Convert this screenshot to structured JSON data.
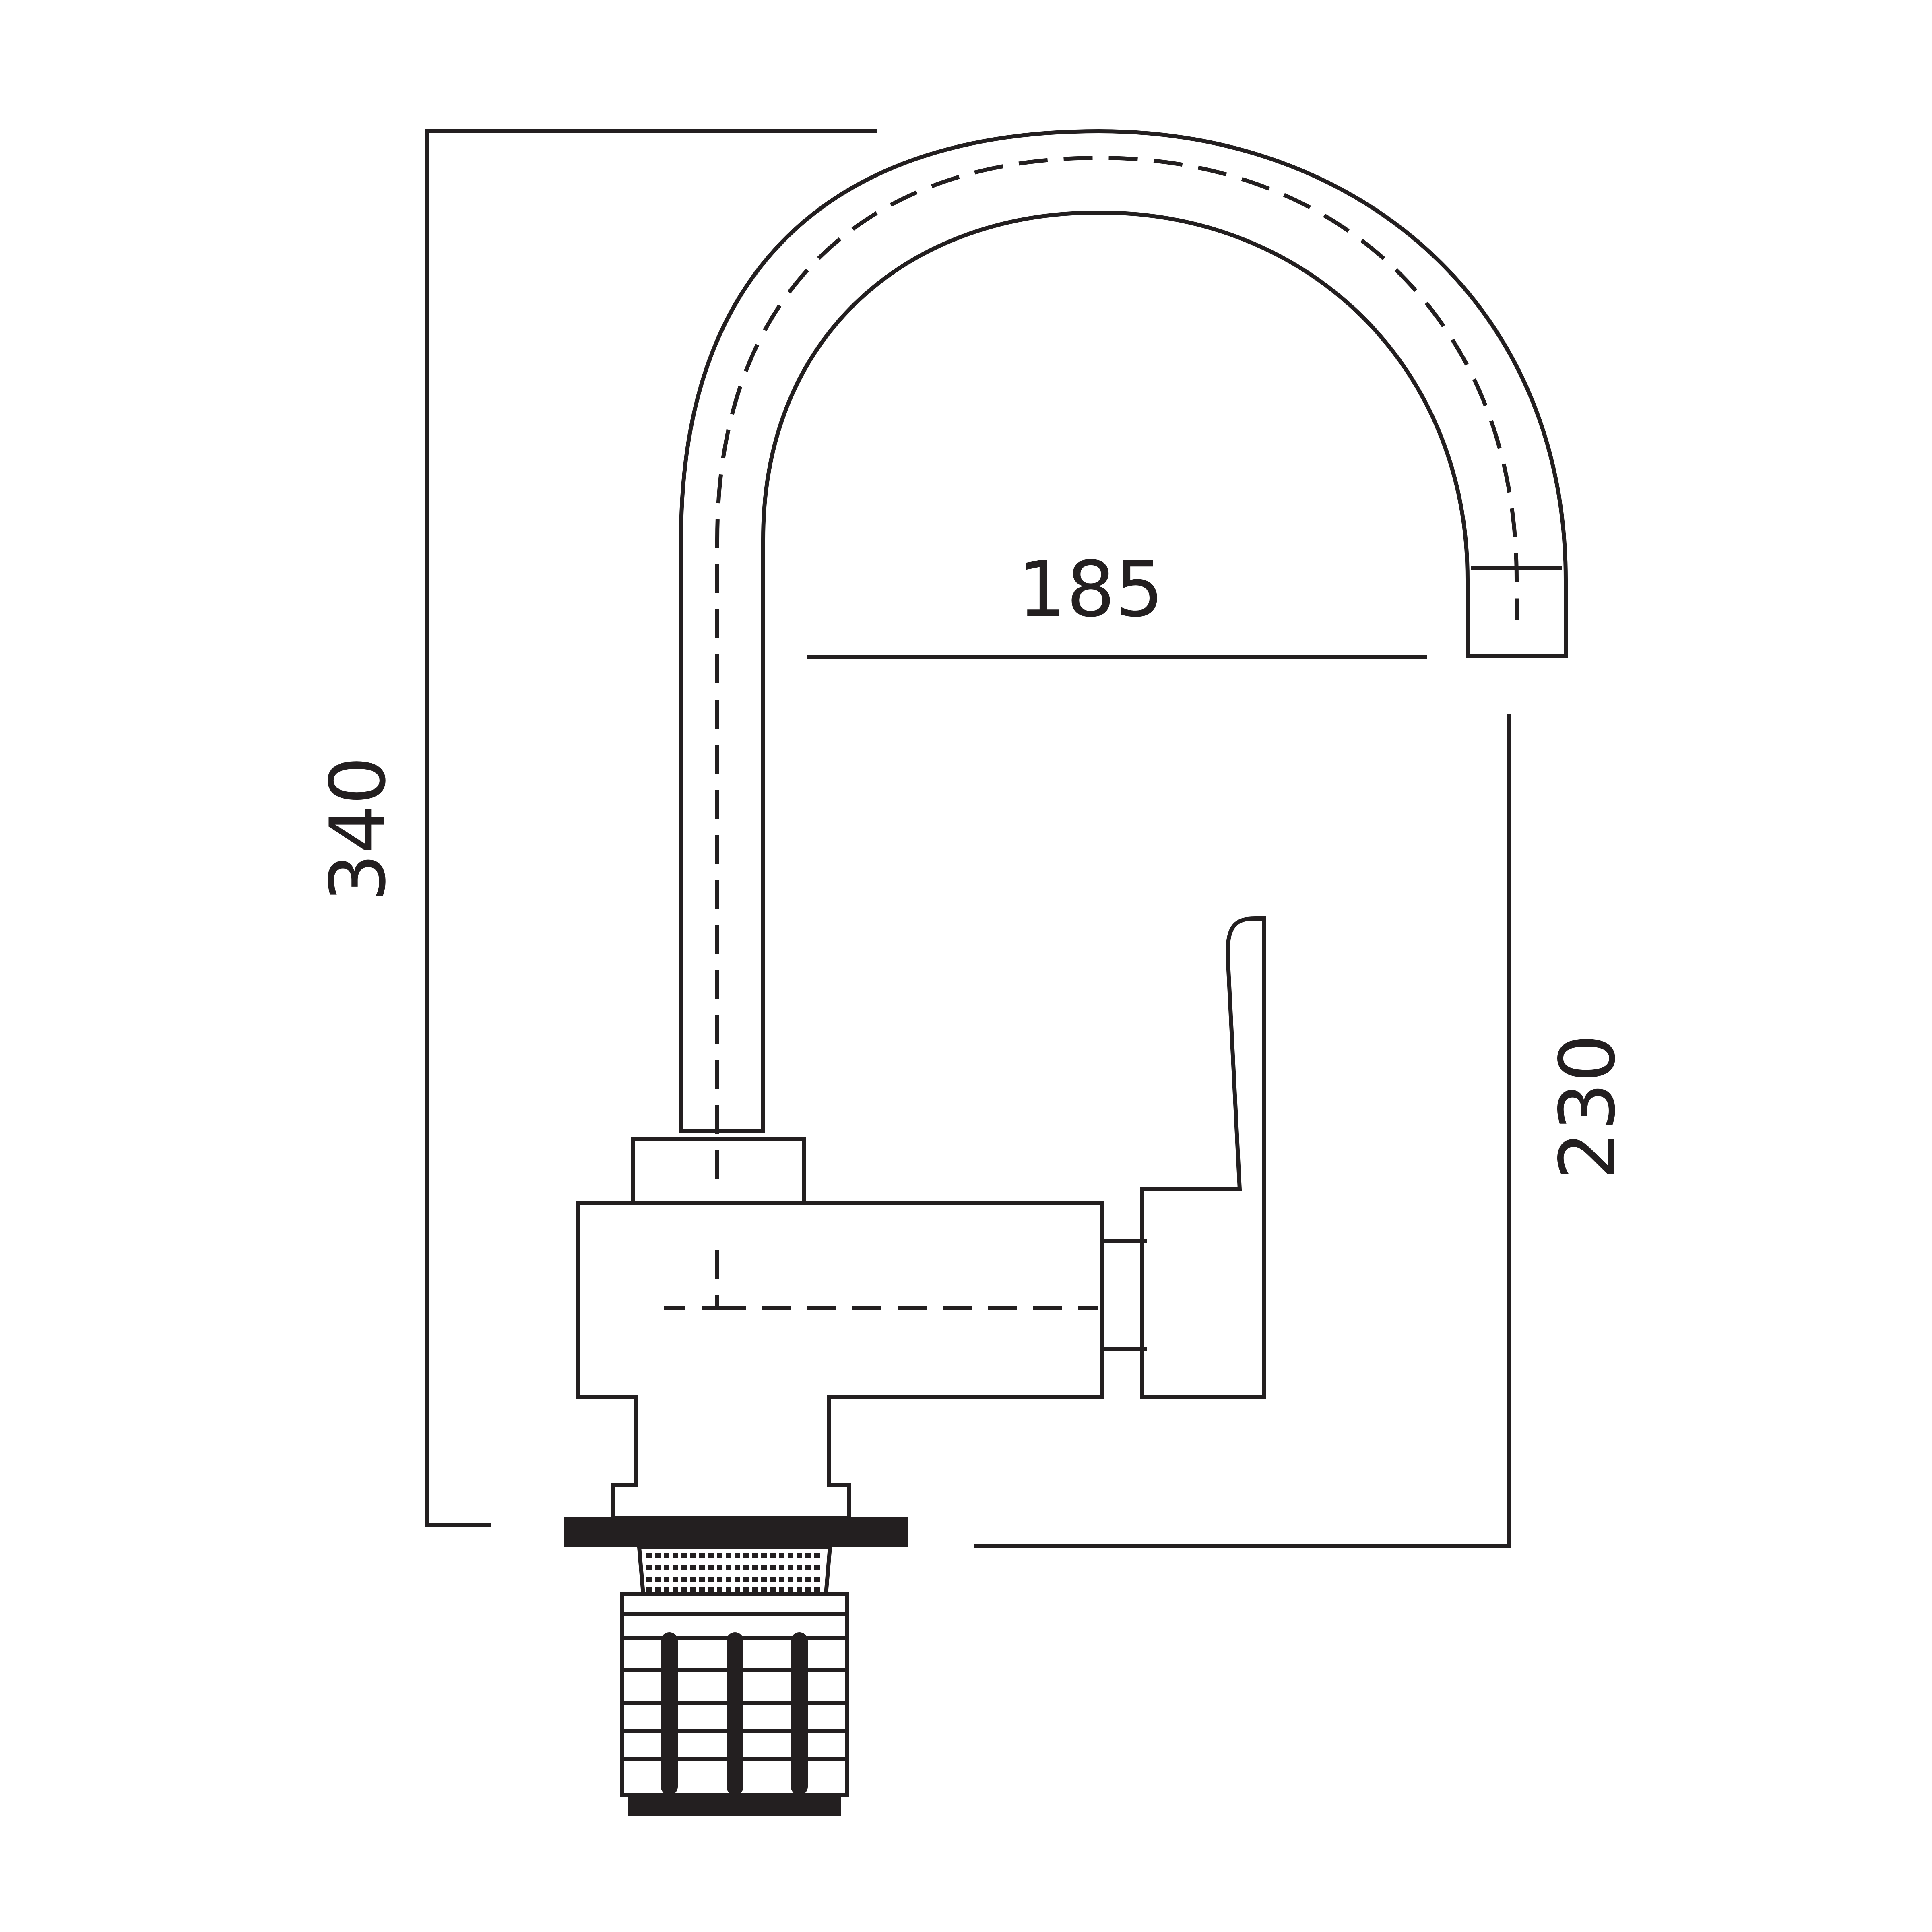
{
  "dimensions": {
    "total_height": "340",
    "spout_reach": "185",
    "spout_height": "230"
  },
  "colors": {
    "line": "#231f20",
    "background": "#ffffff"
  }
}
